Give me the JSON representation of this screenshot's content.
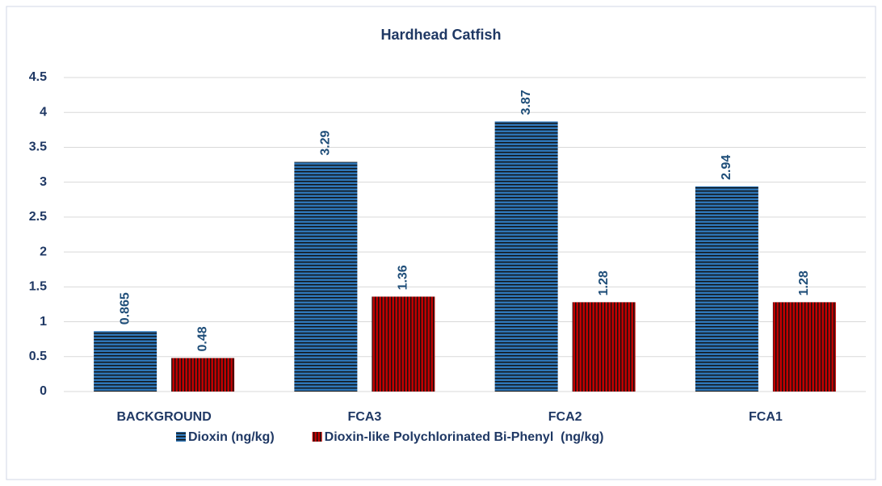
{
  "chart_data": {
    "type": "bar",
    "title": "Hardhead Catfish",
    "categories": [
      "BACKGROUND",
      "FCA3",
      "FCA2",
      "FCA1"
    ],
    "series": [
      {
        "name": "Dioxin (ng/kg)",
        "color": "#2e75b6",
        "values": [
          0.865,
          3.29,
          3.87,
          2.94
        ]
      },
      {
        "name": "Dioxin-like Polychlorinated Bi-Phenyl  (ng/kg)",
        "color": "#c00000",
        "values": [
          0.48,
          1.36,
          1.28,
          1.28
        ]
      }
    ],
    "ylim": [
      0,
      4.5
    ],
    "yticks": [
      0,
      0.5,
      1,
      1.5,
      2,
      2.5,
      3,
      3.5,
      4,
      4.5
    ],
    "grid": true,
    "legend": "bottom"
  }
}
